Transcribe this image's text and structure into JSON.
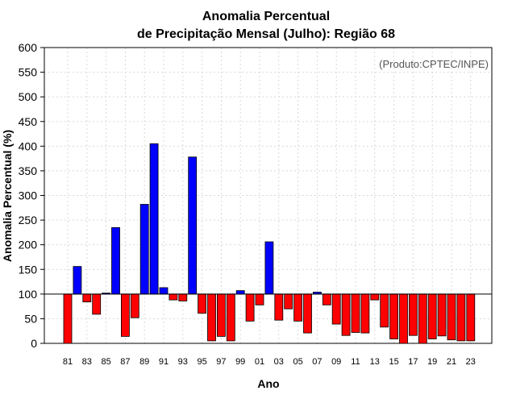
{
  "chart_data": {
    "type": "bar",
    "title": "Anomalia Percentual",
    "subtitle": "de Precipitação Mensal (Julho): Região 68",
    "xlabel": "Ano",
    "ylabel": "Anomalia Percentual (%)",
    "credit": "(Produto:CPTEC/INPE)",
    "ylim": [
      0,
      600
    ],
    "yticks": [
      0,
      50,
      100,
      150,
      200,
      250,
      300,
      350,
      400,
      450,
      500,
      550,
      600
    ],
    "baseline": 100,
    "grid": true,
    "colors": {
      "above": "#0000ff",
      "below": "#ff0000"
    },
    "xtick_labels": [
      "81",
      "83",
      "85",
      "87",
      "89",
      "91",
      "93",
      "95",
      "97",
      "99",
      "01",
      "03",
      "05",
      "07",
      "09",
      "11",
      "13",
      "15",
      "17",
      "19",
      "21",
      "23"
    ],
    "categories": [
      "1981",
      "1982",
      "1983",
      "1984",
      "1985",
      "1986",
      "1987",
      "1988",
      "1989",
      "1990",
      "1991",
      "1992",
      "1993",
      "1994",
      "1995",
      "1996",
      "1997",
      "1998",
      "1999",
      "2000",
      "2001",
      "2002",
      "2003",
      "2004",
      "2005",
      "2006",
      "2007",
      "2008",
      "2009",
      "2010",
      "2011",
      "2012",
      "2013",
      "2014",
      "2015",
      "2016",
      "2017",
      "2018",
      "2019",
      "2020",
      "2021",
      "2022",
      "2023"
    ],
    "values": [
      0,
      156,
      84,
      59,
      102,
      235,
      14,
      52,
      282,
      405,
      113,
      88,
      86,
      378,
      61,
      5,
      14,
      5,
      107,
      45,
      78,
      206,
      47,
      70,
      45,
      21,
      104,
      78,
      39,
      16,
      22,
      21,
      88,
      33,
      9,
      0,
      16,
      0,
      9,
      15,
      7,
      5,
      5
    ]
  }
}
